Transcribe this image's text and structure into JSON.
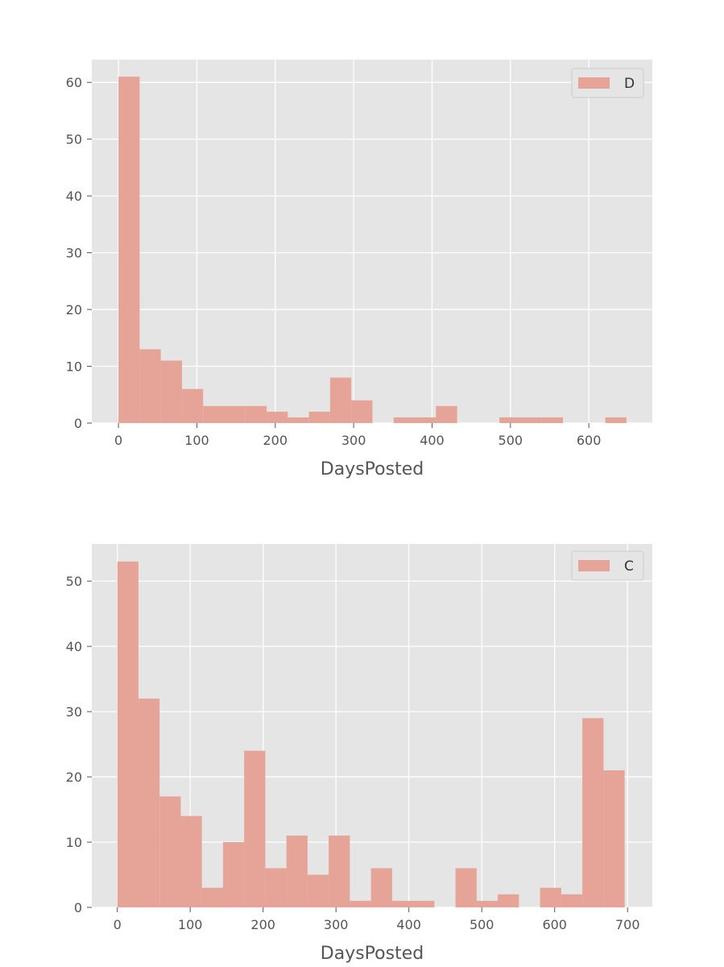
{
  "chart_data": [
    {
      "type": "bar",
      "subtype": "histogram",
      "title": "",
      "xlabel": "DaysPosted",
      "ylabel": "",
      "xlim": [
        -34,
        681
      ],
      "ylim": [
        0,
        64
      ],
      "xticks": [
        0,
        100,
        200,
        300,
        400,
        500,
        600
      ],
      "yticks": [
        0,
        10,
        20,
        30,
        40,
        50,
        60
      ],
      "grid": true,
      "legend": "top-right",
      "bar_color": "#E5A497",
      "bin_edges": [
        0,
        27,
        54,
        81,
        108,
        135,
        162,
        189,
        216,
        243,
        270,
        297,
        324,
        351,
        378,
        405,
        432,
        459,
        486,
        513,
        540,
        567,
        594,
        621,
        648
      ],
      "series": [
        {
          "name": "D",
          "values": [
            61,
            13,
            11,
            6,
            3,
            3,
            3,
            2,
            1,
            2,
            8,
            4,
            0,
            1,
            1,
            3,
            0,
            0,
            1,
            1,
            1,
            0,
            0,
            1
          ]
        }
      ]
    },
    {
      "type": "bar",
      "subtype": "histogram",
      "title": "",
      "xlabel": "DaysPosted",
      "ylabel": "",
      "xlim": [
        -35,
        734
      ],
      "ylim": [
        0,
        55.7
      ],
      "xticks": [
        0,
        100,
        200,
        300,
        400,
        500,
        600,
        700
      ],
      "yticks": [
        0,
        10,
        20,
        30,
        40,
        50
      ],
      "grid": true,
      "legend": "top-right",
      "bar_color": "#E5A497",
      "bin_edges": [
        0,
        29,
        58,
        87,
        116,
        145,
        174,
        203,
        232,
        261,
        290,
        319,
        348,
        377,
        406,
        435,
        464,
        493,
        522,
        551,
        580,
        609,
        638,
        667,
        696
      ],
      "series": [
        {
          "name": "C",
          "values": [
            53,
            32,
            17,
            14,
            3,
            10,
            24,
            6,
            11,
            5,
            11,
            1,
            6,
            1,
            1,
            0,
            6,
            1,
            2,
            0,
            3,
            2,
            29,
            21
          ]
        }
      ]
    }
  ]
}
